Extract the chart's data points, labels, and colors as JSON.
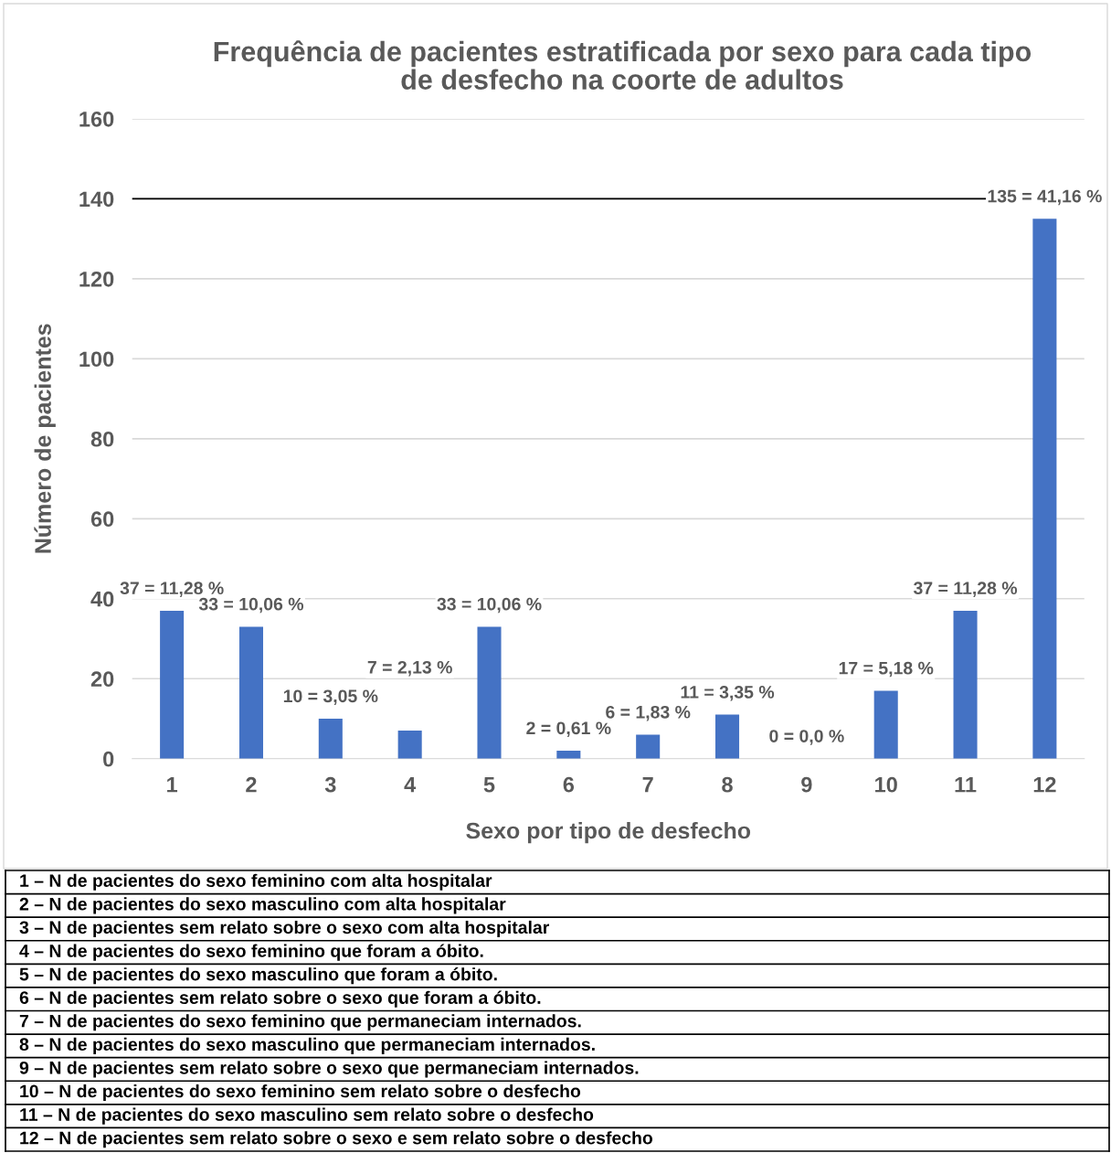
{
  "chart_data": {
    "type": "bar",
    "title": "Frequência de pacientes estratificada por sexo para cada tipo\nde desfecho na coorte de adultos",
    "xlabel": "Sexo por tipo de desfecho",
    "ylabel": "Número de pacientes",
    "categories": [
      "1",
      "2",
      "3",
      "4",
      "5",
      "6",
      "7",
      "8",
      "9",
      "10",
      "11",
      "12"
    ],
    "values": [
      37,
      33,
      10,
      7,
      33,
      2,
      6,
      11,
      0,
      17,
      37,
      135
    ],
    "value_labels": [
      "37 = 11,28 %",
      "33 = 10,06 %",
      "10 = 3,05 %",
      "7 = 2,13 %",
      "33 = 10,06 %",
      "2 = 0,61 %",
      "6 = 1,83 %",
      "11 = 3,35 %",
      "0 = 0,0 %",
      "17 = 5,18 %",
      "37 = 11,28 %",
      "135 = 41,16 %"
    ],
    "color": "#4472c4",
    "ylim": [
      0,
      160
    ],
    "yticks": [
      0,
      20,
      40,
      60,
      80,
      100,
      120,
      140,
      160
    ],
    "grid": "y",
    "ref_lines": [
      {
        "axis": "y",
        "value": 140,
        "color": "#000000"
      }
    ],
    "annotations": [
      "1 – N de pacientes do sexo feminino com alta hospitalar",
      "2 – N de pacientes do sexo masculino com alta hospitalar",
      "3 – N de pacientes sem relato sobre o sexo com alta hospitalar",
      "4 – N de pacientes do sexo feminino que foram a óbito.",
      "5 – N de pacientes do sexo masculino que foram a óbito.",
      "6 – N de pacientes sem relato sobre o sexo que foram a óbito.",
      "7 – N de pacientes do sexo feminino que permaneciam internados.",
      "8 – N de pacientes do sexo masculino que permaneciam internados.",
      "9 – N de pacientes sem relato sobre o sexo que permaneciam internados.",
      "10 – N de pacientes do sexo feminino sem relato sobre o desfecho",
      "11 – N de pacientes do sexo masculino sem relato sobre o desfecho",
      "12 – N de pacientes sem relato sobre o sexo e sem relato sobre o desfecho"
    ]
  }
}
